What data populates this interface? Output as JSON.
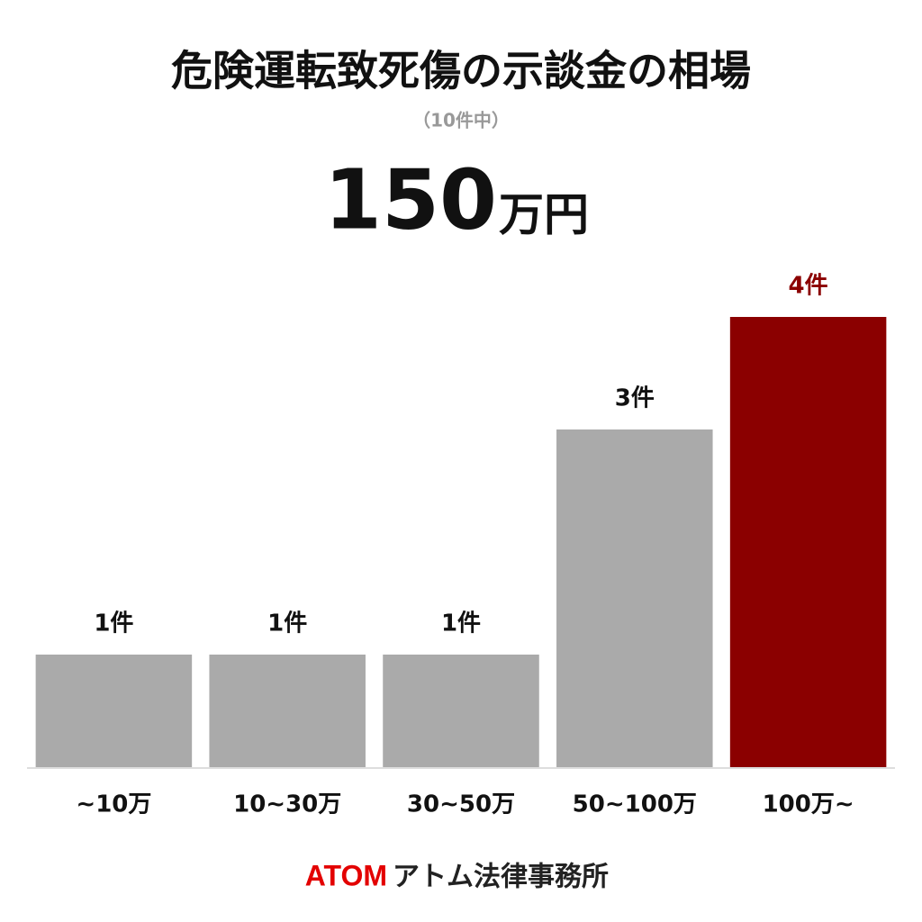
{
  "chart_data": {
    "type": "bar",
    "title": "危険運転致死傷の示談金の相場",
    "subtitle": "（10件中）",
    "headline": {
      "number": "150",
      "unit": "万円"
    },
    "categories": [
      "~10万",
      "10~30万",
      "30~50万",
      "50~100万",
      "100万~"
    ],
    "values": [
      1,
      1,
      1,
      3,
      4
    ],
    "value_labels": [
      "1件",
      "1件",
      "1件",
      "3件",
      "4件"
    ],
    "colors": [
      "#aaaaaa",
      "#aaaaaa",
      "#aaaaaa",
      "#aaaaaa",
      "#8b0000"
    ],
    "label_colors": [
      "#111111",
      "#111111",
      "#111111",
      "#111111",
      "#8b0000"
    ],
    "footer": {
      "brand": "ATOM",
      "name": "アトム法律事務所"
    }
  }
}
